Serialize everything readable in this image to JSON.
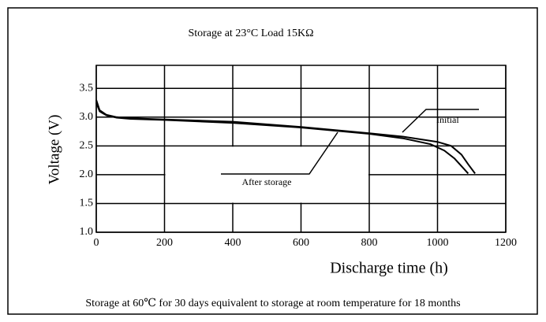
{
  "chart_data": {
    "type": "line",
    "title": "Storage at 23°C    Load 15KΩ",
    "xlabel": "Discharge time (h)",
    "ylabel": "Voltage (V)",
    "footnote": "Storage at 60℃ for 30 days equivalent to storage at room temperature for 18 months",
    "xlim": [
      0,
      1200
    ],
    "ylim": [
      1.0,
      3.9
    ],
    "xticks": [
      0,
      200,
      400,
      600,
      800,
      1000,
      1200
    ],
    "yticks": [
      {
        "value": 1.0,
        "label": "1.0"
      },
      1.5,
      {
        "value": 2.0,
        "label": "2.0"
      },
      2.5,
      {
        "value": 3.0,
        "label": "3.0"
      },
      3.5
    ],
    "grid": true,
    "series": [
      {
        "name": "Initial",
        "color": "#000000",
        "x": [
          0,
          10,
          30,
          60,
          100,
          200,
          400,
          600,
          800,
          900,
          1000,
          1040,
          1070,
          1090,
          1110
        ],
        "values": [
          3.3,
          3.12,
          3.04,
          3.0,
          2.98,
          2.96,
          2.92,
          2.83,
          2.72,
          2.66,
          2.57,
          2.5,
          2.35,
          2.18,
          2.02
        ]
      },
      {
        "name": "After storage",
        "color": "#000000",
        "x": [
          0,
          10,
          30,
          60,
          100,
          200,
          400,
          600,
          800,
          900,
          980,
          1020,
          1050,
          1070,
          1090
        ],
        "values": [
          3.25,
          3.1,
          3.03,
          2.99,
          2.97,
          2.95,
          2.9,
          2.82,
          2.71,
          2.63,
          2.53,
          2.42,
          2.28,
          2.15,
          2.02
        ]
      }
    ]
  }
}
